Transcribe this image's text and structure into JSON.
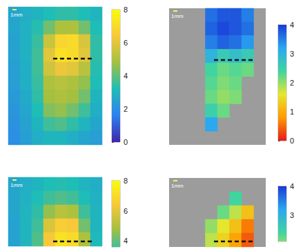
{
  "chart_data": [
    {
      "type": "heatmap",
      "scale_label": "1mm",
      "color_scale": [
        0,
        8
      ],
      "colorbar": {
        "range": [
          0,
          8
        ],
        "ticks": [
          0,
          2,
          4,
          6,
          8
        ],
        "colors": [
          "#3e26a8",
          "#2f7ff0",
          "#1ebdb7",
          "#a4c040",
          "#f7c83a",
          "#f9fb0e"
        ]
      },
      "cells": [
        [
          2.6,
          2.8,
          3.0,
          3.2,
          3.4,
          3.4,
          3.2,
          3.0
        ],
        [
          2.6,
          2.9,
          3.3,
          4.2,
          5.0,
          5.0,
          4.2,
          3.2
        ],
        [
          2.5,
          2.9,
          3.5,
          5.5,
          6.8,
          7.0,
          5.8,
          3.4
        ],
        [
          2.5,
          2.9,
          3.6,
          6.0,
          7.2,
          7.0,
          6.0,
          3.4
        ],
        [
          2.4,
          2.8,
          3.6,
          5.6,
          6.2,
          6.0,
          5.2,
          3.3
        ],
        [
          2.4,
          2.8,
          3.5,
          5.0,
          5.2,
          5.0,
          4.6,
          3.2
        ],
        [
          2.3,
          2.7,
          3.4,
          4.8,
          5.0,
          4.8,
          4.2,
          3.0
        ],
        [
          2.2,
          2.6,
          3.2,
          4.4,
          4.6,
          4.2,
          3.6,
          2.8
        ],
        [
          2.1,
          2.5,
          3.0,
          3.6,
          3.8,
          3.4,
          3.0,
          2.6
        ],
        [
          2.0,
          2.4,
          2.8,
          3.0,
          3.0,
          2.8,
          2.6,
          2.4
        ]
      ]
    },
    {
      "type": "heatmap",
      "scale_label": "1mm",
      "color_scale": [
        0,
        4
      ],
      "colorbar": {
        "range": [
          0,
          4
        ],
        "ticks": [
          0,
          1,
          2,
          3,
          4
        ],
        "colors": [
          "#e41a1c",
          "#ff9a00",
          "#e6e62e",
          "#40d4a0",
          "#2aa8f0",
          "#1a3ad8"
        ]
      },
      "cells": [
        [
          null,
          null,
          null,
          3.6,
          3.8,
          3.8,
          3.5,
          null
        ],
        [
          null,
          null,
          null,
          3.7,
          3.9,
          3.8,
          3.6,
          null
        ],
        [
          null,
          null,
          null,
          3.5,
          3.7,
          3.6,
          3.3,
          null
        ],
        [
          null,
          null,
          null,
          3.0,
          2.6,
          2.8,
          2.6,
          null
        ],
        [
          null,
          null,
          null,
          2.4,
          2.2,
          2.3,
          2.2,
          null
        ],
        [
          null,
          null,
          null,
          2.3,
          2.1,
          2.2,
          null,
          null
        ],
        [
          null,
          null,
          null,
          2.2,
          2.0,
          2.1,
          null,
          null
        ],
        [
          null,
          null,
          null,
          2.5,
          2.2,
          null,
          null,
          null
        ],
        [
          null,
          null,
          null,
          3.2,
          null,
          null,
          null,
          null
        ],
        [
          null,
          null,
          null,
          null,
          null,
          null,
          null,
          null
        ]
      ]
    },
    {
      "type": "heatmap",
      "scale_label": "1mm",
      "color_scale": [
        0,
        8
      ],
      "colorbar": {
        "range": [
          3.6,
          8
        ],
        "ticks": [
          4,
          6,
          8
        ],
        "colors": [
          "#3e26a8",
          "#2f7ff0",
          "#1ebdb7",
          "#a4c040",
          "#f7c83a",
          "#f9fb0e"
        ]
      },
      "cells": [
        [
          2.6,
          2.8,
          3.0,
          3.2,
          3.3,
          3.2,
          3.0,
          2.8
        ],
        [
          2.6,
          2.9,
          3.2,
          3.6,
          3.8,
          3.6,
          3.2,
          2.9
        ],
        [
          2.6,
          3.0,
          3.4,
          4.6,
          5.2,
          5.0,
          3.6,
          3.0
        ],
        [
          2.5,
          3.0,
          3.6,
          5.8,
          6.6,
          6.4,
          4.2,
          3.0
        ],
        [
          2.5,
          3.0,
          3.8,
          6.4,
          7.2,
          7.0,
          5.0,
          3.1
        ]
      ]
    },
    {
      "type": "heatmap",
      "scale_label": "1mm",
      "color_scale": [
        0,
        4
      ],
      "colorbar": {
        "range": [
          2.1,
          4
        ],
        "ticks": [
          3,
          4
        ],
        "colors": [
          "#e41a1c",
          "#ff9a00",
          "#e6e62e",
          "#40d4a0",
          "#2aa8f0",
          "#1a3ad8"
        ]
      },
      "cells": [
        [
          null,
          null,
          null,
          null,
          null,
          null,
          null,
          null
        ],
        [
          null,
          null,
          null,
          null,
          null,
          2.4,
          null,
          null
        ],
        [
          null,
          null,
          null,
          null,
          2.2,
          1.8,
          1.2,
          null
        ],
        [
          null,
          null,
          null,
          2.0,
          1.6,
          1.2,
          0.6,
          null
        ],
        [
          null,
          null,
          null,
          1.8,
          1.4,
          0.9,
          0.4,
          null
        ]
      ]
    }
  ]
}
